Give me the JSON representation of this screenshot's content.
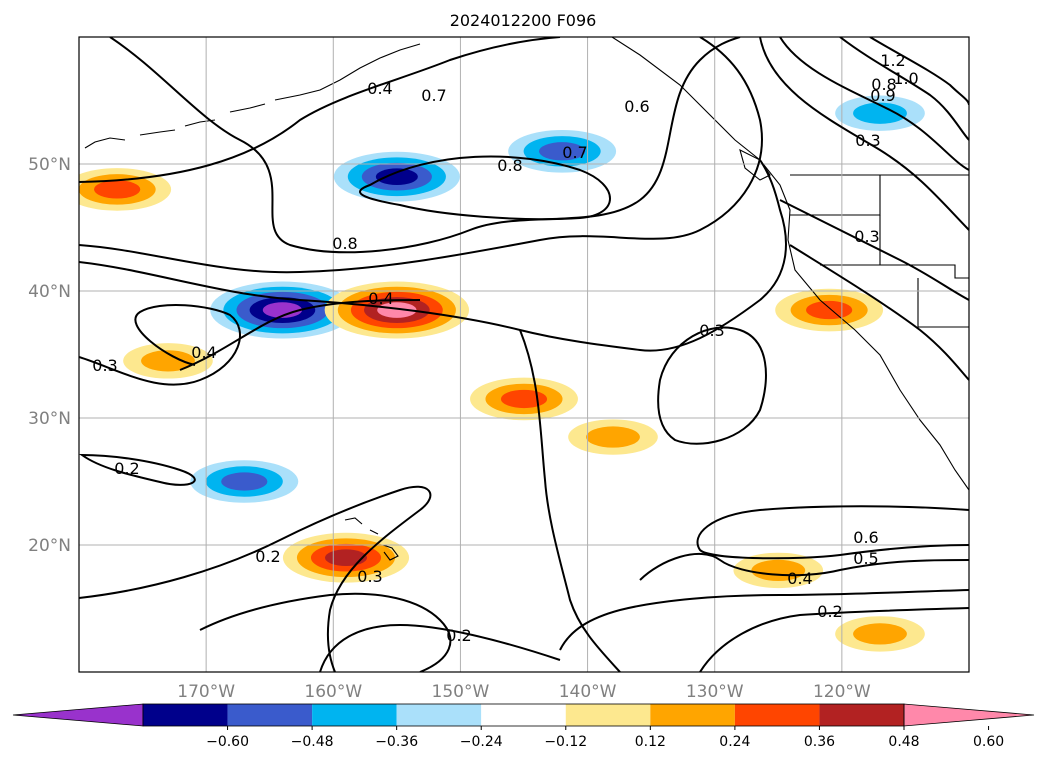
{
  "chart_data": {
    "type": "heatmap",
    "title": "2024012200 F096",
    "projection": "map (lon/lat)",
    "xlim": [
      -180,
      -110
    ],
    "ylim": [
      10,
      60
    ],
    "lon_ticks": [
      -170,
      -160,
      -150,
      -140,
      -130,
      -120
    ],
    "lon_tick_labels": [
      "170°W",
      "160°W",
      "150°W",
      "140°W",
      "130°W",
      "120°W"
    ],
    "lat_ticks": [
      20,
      30,
      40,
      50
    ],
    "lat_tick_labels": [
      "20°N",
      "30°N",
      "40°N",
      "50°N"
    ],
    "grid": true,
    "colorbar": {
      "orientation": "horizontal",
      "extend": "both",
      "levels": [
        -0.72,
        -0.6,
        -0.48,
        -0.36,
        -0.24,
        -0.12,
        0.12,
        0.24,
        0.36,
        0.48,
        0.6,
        0.72
      ],
      "tick_labels": [
        "−0.60",
        "−0.48",
        "−0.36",
        "−0.24",
        "−0.12",
        "0.12",
        "0.24",
        "0.36",
        "0.48",
        "0.60"
      ],
      "colors": [
        "#9932cc",
        "#00008b",
        "#3a5bcc",
        "#00b4f0",
        "#aae0fa",
        "#ffffff",
        "#fde88f",
        "#ffa500",
        "#ff4500",
        "#b22222",
        "#ff88aa"
      ]
    },
    "filled_regions": [
      {
        "value": -0.6,
        "lon": -164,
        "lat": 38.5
      },
      {
        "value": -0.48,
        "lon": -155,
        "lat": 49
      },
      {
        "value": -0.36,
        "lon": -142,
        "lat": 51
      },
      {
        "value": -0.36,
        "lon": -167,
        "lat": 25
      },
      {
        "value": -0.24,
        "lon": -117,
        "lat": 54
      },
      {
        "value": 0.6,
        "lon": -155,
        "lat": 38.5
      },
      {
        "value": 0.48,
        "lon": -159,
        "lat": 19
      },
      {
        "value": 0.36,
        "lon": -121,
        "lat": 38.5
      },
      {
        "value": 0.36,
        "lon": -177,
        "lat": 48
      },
      {
        "value": 0.36,
        "lon": -145,
        "lat": 31.5
      },
      {
        "value": 0.24,
        "lon": -125,
        "lat": 18
      },
      {
        "value": 0.24,
        "lon": -138,
        "lat": 28.5
      },
      {
        "value": 0.24,
        "lon": -173,
        "lat": 34.5
      },
      {
        "value": 0.24,
        "lon": -117,
        "lat": 13
      }
    ],
    "contour_labels": [
      "1.2",
      "1.0",
      "0.8",
      "0.4",
      "0.6",
      "0.7",
      "0.8",
      "0.7",
      "0.3",
      "0.9",
      "0.8",
      "0.3",
      "0.4",
      "0.3",
      "0.4",
      "0.3",
      "0.2",
      "0.2",
      "0.3",
      "0.6",
      "0.5",
      "0.4",
      "0.2",
      "0.2"
    ]
  }
}
